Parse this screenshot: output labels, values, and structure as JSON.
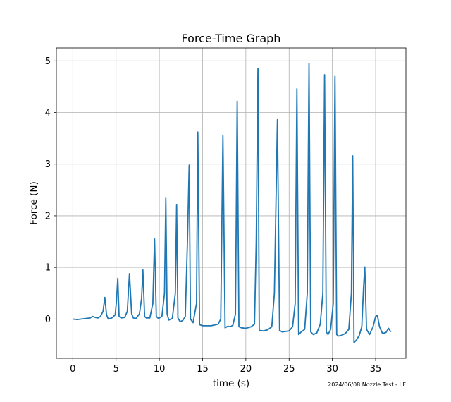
{
  "chart_data": {
    "type": "line",
    "title": "Force-Time Graph",
    "xlabel": "time (s)",
    "ylabel": "Force (N)",
    "xlim": [
      -1.9,
      38.5
    ],
    "ylim": [
      -0.76,
      5.25
    ],
    "xticks": [
      0,
      5,
      10,
      15,
      20,
      25,
      30,
      35
    ],
    "yticks": [
      0,
      1,
      2,
      3,
      4,
      5
    ],
    "grid": true,
    "annotation": "2024/06/08 Nozzle Test - I.F",
    "colors": {
      "line": "#1f77b4",
      "grid": "#b0b0b0",
      "axes": "#000000"
    },
    "series": [
      {
        "x": [
          0,
          0.5,
          1.0,
          1.5,
          2.0,
          2.3,
          2.6,
          2.9,
          3.2,
          3.5,
          3.7,
          3.9,
          4.1,
          4.5,
          4.9,
          5.05,
          5.2,
          5.35,
          5.6,
          6.0,
          6.3,
          6.55,
          6.8,
          7.0,
          7.3,
          7.7,
          7.95,
          8.1,
          8.3,
          8.5,
          8.9,
          9.25,
          9.45,
          9.65,
          9.9,
          10.3,
          10.6,
          10.75,
          10.9,
          11.1,
          11.5,
          11.85,
          12.0,
          12.15,
          12.4,
          12.7,
          13.0,
          13.25,
          13.45,
          13.6,
          13.9,
          14.3,
          14.45,
          14.65,
          15.0,
          16.0,
          16.8,
          17.1,
          17.35,
          17.6,
          17.9,
          18.2,
          18.5,
          18.8,
          19.0,
          19.2,
          19.5,
          20.0,
          20.6,
          21.0,
          21.2,
          21.4,
          21.55,
          22.0,
          22.5,
          23.0,
          23.3,
          23.65,
          23.9,
          24.2,
          25.0,
          25.4,
          25.7,
          25.9,
          26.1,
          26.4,
          26.8,
          27.1,
          27.3,
          27.5,
          27.8,
          28.2,
          28.6,
          28.9,
          29.1,
          29.3,
          29.5,
          29.8,
          30.1,
          30.3,
          30.5,
          30.7,
          31.0,
          31.5,
          31.9,
          32.2,
          32.35,
          32.5,
          32.8,
          33.1,
          33.4,
          33.6,
          33.75,
          33.95,
          34.3,
          34.7,
          35.0,
          35.2,
          35.45,
          35.8,
          36.2,
          36.5,
          36.75
        ],
        "y": [
          0.0,
          -0.01,
          0.0,
          0.01,
          0.02,
          0.05,
          0.03,
          0.02,
          0.05,
          0.15,
          0.42,
          0.08,
          0.0,
          0.02,
          0.08,
          0.35,
          0.79,
          0.05,
          0.02,
          0.03,
          0.15,
          0.88,
          0.1,
          0.02,
          0.01,
          0.1,
          0.4,
          0.95,
          0.05,
          0.02,
          0.02,
          0.3,
          1.55,
          0.05,
          0.01,
          0.05,
          0.5,
          2.34,
          0.1,
          -0.02,
          0.01,
          0.5,
          2.22,
          0.02,
          -0.05,
          -0.03,
          0.05,
          1.5,
          2.98,
          0.0,
          -0.07,
          0.3,
          3.62,
          -0.11,
          -0.13,
          -0.13,
          -0.1,
          0.0,
          3.55,
          -0.17,
          -0.14,
          -0.15,
          -0.12,
          0.1,
          4.22,
          -0.15,
          -0.17,
          -0.18,
          -0.15,
          -0.1,
          1.5,
          4.85,
          -0.22,
          -0.23,
          -0.21,
          -0.15,
          0.5,
          3.86,
          -0.22,
          -0.25,
          -0.23,
          -0.15,
          0.3,
          4.46,
          -0.3,
          -0.25,
          -0.2,
          0.5,
          4.95,
          -0.25,
          -0.3,
          -0.27,
          -0.1,
          0.5,
          4.73,
          -0.25,
          -0.3,
          -0.2,
          0.3,
          4.7,
          -0.3,
          -0.33,
          -0.32,
          -0.28,
          -0.2,
          0.5,
          3.16,
          -0.46,
          -0.4,
          -0.32,
          -0.15,
          0.6,
          1.01,
          -0.2,
          -0.3,
          -0.15,
          0.05,
          0.07,
          -0.15,
          -0.28,
          -0.26,
          -0.18,
          -0.25
        ]
      }
    ]
  }
}
